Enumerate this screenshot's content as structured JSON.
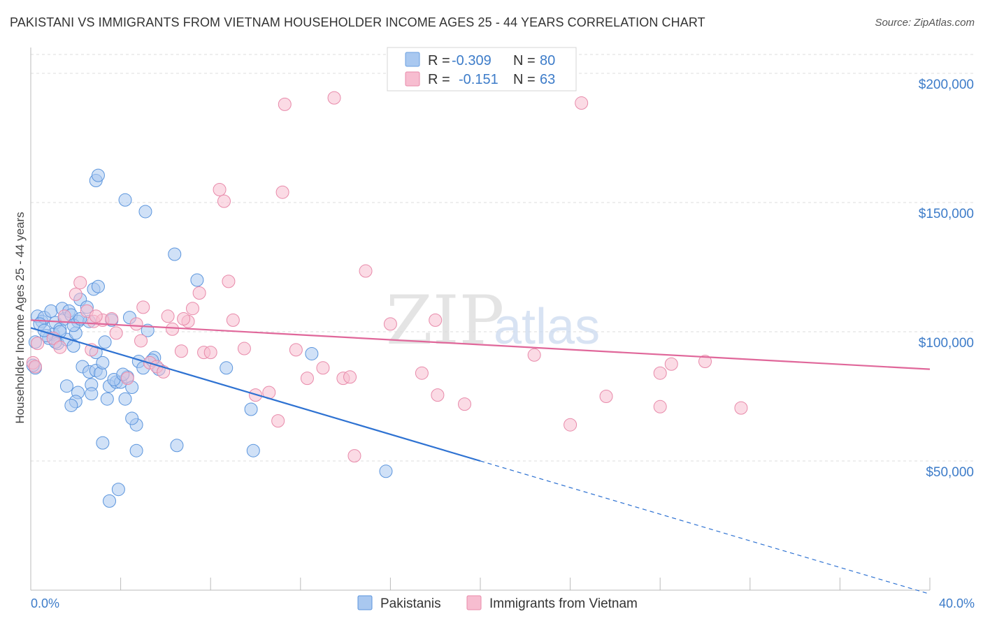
{
  "title": "PAKISTANI VS IMMIGRANTS FROM VIETNAM HOUSEHOLDER INCOME AGES 25 - 44 YEARS CORRELATION CHART",
  "source": "Source: ZipAtlas.com",
  "watermark": {
    "zip": "ZIP",
    "atlas": "atlas"
  },
  "chart_data": {
    "type": "scatter",
    "ylabel": "Householder Income Ages 25 - 44 years",
    "x_tick_labels": [
      "0.0%",
      "40.0%"
    ],
    "xlim": [
      0,
      40
    ],
    "ylim": [
      0,
      210000
    ],
    "y_ticks": [
      {
        "value": 50000,
        "label": "$50,000"
      },
      {
        "value": 100000,
        "label": "$100,000"
      },
      {
        "value": 150000,
        "label": "$150,000"
      },
      {
        "value": 200000,
        "label": "$200,000"
      }
    ],
    "x_ticks": [
      0,
      4,
      8,
      12,
      16,
      20,
      24,
      28,
      32,
      36,
      40
    ],
    "grid": true,
    "legend": {
      "placement": "top-center",
      "entries": [
        {
          "r_label": "R =",
          "r": "-0.309",
          "n_label": "N =",
          "n": "80",
          "color": "#a9c8f0",
          "stroke": "#6a9fe0"
        },
        {
          "r_label": "R =",
          "r": "-0.151",
          "n_label": "N =",
          "n": "63",
          "color": "#f7bdd0",
          "stroke": "#e88aaa"
        }
      ]
    },
    "series": [
      {
        "name": "Pakistanis",
        "color": "#a9c8f0",
        "stroke": "#5b95dd",
        "line_color": "#2e72d2",
        "trend": {
          "x0": 0,
          "y0": 101500,
          "x1": 20,
          "y1": 50000,
          "dash_to_x": 40,
          "dash_to_y": -1500
        },
        "points": [
          [
            0.3,
            106000
          ],
          [
            0.5,
            104000
          ],
          [
            0.6,
            105500
          ],
          [
            0.8,
            97500
          ],
          [
            0.9,
            108000
          ],
          [
            1.0,
            99000
          ],
          [
            1.1,
            103500
          ],
          [
            1.2,
            95500
          ],
          [
            1.3,
            101000
          ],
          [
            1.4,
            109000
          ],
          [
            1.5,
            105000
          ],
          [
            1.6,
            97000
          ],
          [
            1.7,
            108000
          ],
          [
            1.8,
            106500
          ],
          [
            1.9,
            94500
          ],
          [
            2.0,
            99500
          ],
          [
            1.1,
            96000
          ],
          [
            0.7,
            98500
          ],
          [
            0.4,
            103000
          ],
          [
            0.2,
            86000
          ],
          [
            2.1,
            104000
          ],
          [
            2.2,
            112500
          ],
          [
            2.3,
            86500
          ],
          [
            2.5,
            109500
          ],
          [
            2.6,
            104000
          ],
          [
            2.8,
            116500
          ],
          [
            3.0,
            117500
          ],
          [
            2.6,
            84500
          ],
          [
            2.9,
            85000
          ],
          [
            3.1,
            84000
          ],
          [
            3.3,
            96000
          ],
          [
            2.7,
            79500
          ],
          [
            1.6,
            79000
          ],
          [
            2.1,
            76500
          ],
          [
            2.7,
            76000
          ],
          [
            2.0,
            73000
          ],
          [
            1.8,
            71500
          ],
          [
            3.5,
            79000
          ],
          [
            3.8,
            80500
          ],
          [
            3.4,
            74000
          ],
          [
            4.0,
            80500
          ],
          [
            4.3,
            82500
          ],
          [
            4.2,
            74000
          ],
          [
            4.5,
            78500
          ],
          [
            4.8,
            88500
          ],
          [
            5.0,
            86000
          ],
          [
            5.5,
            90000
          ],
          [
            5.2,
            100500
          ],
          [
            6.4,
            130000
          ],
          [
            7.4,
            120000
          ],
          [
            5.7,
            85500
          ],
          [
            6.5,
            56000
          ],
          [
            4.7,
            64000
          ],
          [
            4.5,
            66500
          ],
          [
            3.2,
            57000
          ],
          [
            4.7,
            54000
          ],
          [
            3.9,
            39000
          ],
          [
            3.5,
            34500
          ],
          [
            2.9,
            158500
          ],
          [
            3.0,
            160500
          ],
          [
            4.2,
            151000
          ],
          [
            5.1,
            146500
          ],
          [
            8.7,
            86000
          ],
          [
            9.8,
            70000
          ],
          [
            9.9,
            54000
          ],
          [
            12.5,
            91500
          ],
          [
            15.8,
            46000
          ],
          [
            3.7,
            81500
          ],
          [
            4.4,
            105500
          ],
          [
            3.6,
            104500
          ],
          [
            3.2,
            88000
          ],
          [
            1.9,
            102500
          ],
          [
            2.2,
            105000
          ],
          [
            0.6,
            100500
          ],
          [
            2.9,
            92000
          ],
          [
            4.1,
            83500
          ],
          [
            1.3,
            100000
          ],
          [
            5.4,
            89000
          ],
          [
            0.1,
            87000
          ],
          [
            0.2,
            96000
          ]
        ]
      },
      {
        "name": "Immigrants from Vietnam",
        "color": "#f7bdd0",
        "stroke": "#e88aaa",
        "line_color": "#e0679a",
        "trend": {
          "x0": 0,
          "y0": 104500,
          "x1": 40,
          "y1": 85500
        },
        "points": [
          [
            0.1,
            88000
          ],
          [
            0.3,
            95500
          ],
          [
            1.0,
            97500
          ],
          [
            1.5,
            106000
          ],
          [
            2.0,
            114500
          ],
          [
            2.2,
            119000
          ],
          [
            2.5,
            108000
          ],
          [
            2.8,
            104000
          ],
          [
            3.2,
            104500
          ],
          [
            3.6,
            105000
          ],
          [
            3.8,
            99500
          ],
          [
            4.3,
            82000
          ],
          [
            4.7,
            103000
          ],
          [
            5.0,
            109500
          ],
          [
            5.3,
            88000
          ],
          [
            5.6,
            86500
          ],
          [
            6.1,
            106000
          ],
          [
            6.3,
            101000
          ],
          [
            6.7,
            92500
          ],
          [
            7.0,
            104000
          ],
          [
            7.2,
            109000
          ],
          [
            7.5,
            115000
          ],
          [
            7.7,
            92000
          ],
          [
            8.0,
            92000
          ],
          [
            8.4,
            155000
          ],
          [
            8.6,
            150500
          ],
          [
            8.8,
            119500
          ],
          [
            9.0,
            104500
          ],
          [
            9.5,
            93500
          ],
          [
            10.0,
            75500
          ],
          [
            10.6,
            76500
          ],
          [
            11.0,
            65500
          ],
          [
            11.2,
            154000
          ],
          [
            11.3,
            188000
          ],
          [
            11.8,
            93000
          ],
          [
            12.3,
            82000
          ],
          [
            13.0,
            86000
          ],
          [
            13.5,
            190500
          ],
          [
            13.9,
            82000
          ],
          [
            14.2,
            82500
          ],
          [
            14.4,
            52000
          ],
          [
            14.9,
            123500
          ],
          [
            16.0,
            103000
          ],
          [
            17.4,
            84000
          ],
          [
            18.0,
            104500
          ],
          [
            18.1,
            75500
          ],
          [
            19.3,
            72000
          ],
          [
            22.4,
            91000
          ],
          [
            24.0,
            64000
          ],
          [
            24.5,
            188500
          ],
          [
            25.6,
            75000
          ],
          [
            28.0,
            84000
          ],
          [
            28.0,
            71000
          ],
          [
            28.5,
            87500
          ],
          [
            30.0,
            88500
          ],
          [
            31.6,
            70500
          ],
          [
            2.9,
            106000
          ],
          [
            4.9,
            96500
          ],
          [
            2.7,
            93000
          ],
          [
            5.9,
            84500
          ],
          [
            6.8,
            105000
          ],
          [
            0.2,
            86500
          ],
          [
            1.3,
            94000
          ]
        ]
      }
    ]
  }
}
